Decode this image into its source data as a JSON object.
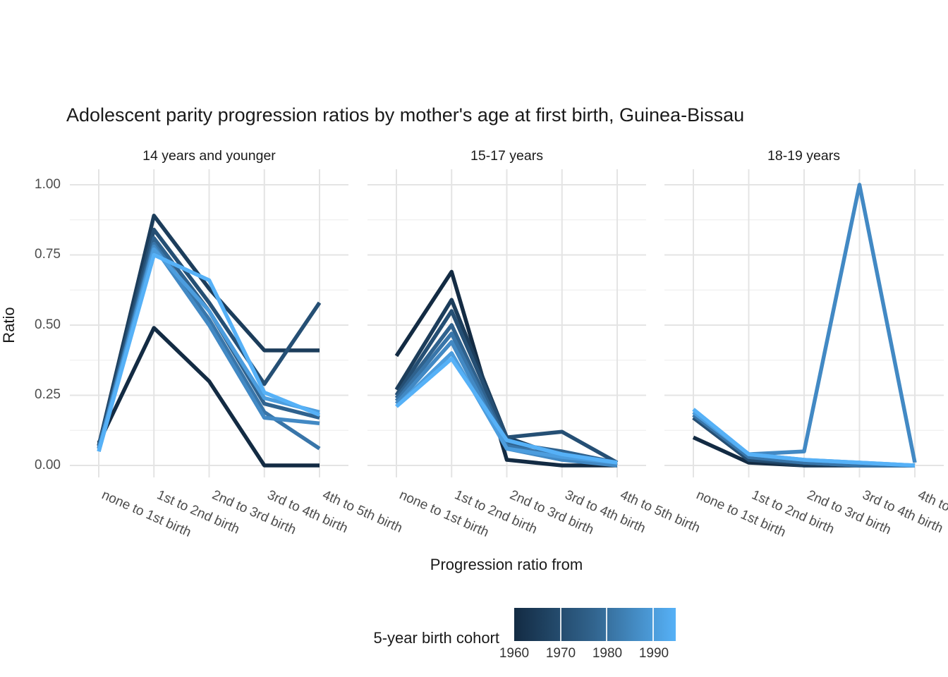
{
  "title": "Adolescent parity progression ratios by mother's age at first birth,  Guinea-Bissau",
  "y_axis": {
    "title": "Ratio",
    "ticks": [
      "1.00",
      "0.75",
      "0.50",
      "0.25",
      "0.00"
    ]
  },
  "x_axis": {
    "title": "Progression ratio from"
  },
  "legend": {
    "title": "5-year birth cohort",
    "tick_labels": [
      "1960",
      "1970",
      "1980",
      "1990"
    ],
    "gradient_low": "#132B43",
    "gradient_mid": "#32658F",
    "gradient_high": "#56B1F7"
  },
  "chart_data": {
    "type": "line",
    "title": "Adolescent parity progression ratios by mother's age at first birth,  Guinea-Bissau",
    "xlabel": "Progression ratio from",
    "ylabel": "Ratio",
    "ylim": [
      0,
      1
    ],
    "y_major_ticks": [
      0,
      0.25,
      0.5,
      0.75,
      1.0
    ],
    "y_minor_ticks": [
      0.125,
      0.375,
      0.625,
      0.875
    ],
    "grid": true,
    "legend_position": "bottom",
    "color_scale": {
      "title": "5-year birth cohort",
      "low": "#132B43",
      "high": "#56B1F7",
      "ticks": [
        1960,
        1970,
        1980,
        1990
      ]
    },
    "categories": [
      "none to 1st birth",
      "1st to 2nd birth",
      "2nd to 3rd birth",
      "3rd to 4th birth",
      "4th to 5th birth"
    ],
    "facets": [
      {
        "label": "14 years and younger",
        "series": [
          {
            "name": "1960",
            "color": "#132B43",
            "values": [
              0.08,
              0.49,
              0.3,
              0.0,
              0.0
            ]
          },
          {
            "name": "1965",
            "color": "#1C3D5B",
            "values": [
              0.07,
              0.89,
              0.63,
              0.41,
              0.41
            ]
          },
          {
            "name": "1970",
            "color": "#254F74",
            "values": [
              0.07,
              0.84,
              0.58,
              0.29,
              0.58
            ]
          },
          {
            "name": "1975",
            "color": "#2F628E",
            "values": [
              0.06,
              0.81,
              0.55,
              0.22,
              0.17
            ]
          },
          {
            "name": "1980",
            "color": "#3875A9",
            "values": [
              0.06,
              0.79,
              0.52,
              0.19,
              0.06
            ]
          },
          {
            "name": "1985",
            "color": "#4289C4",
            "values": [
              0.06,
              0.78,
              0.5,
              0.17,
              0.15
            ]
          },
          {
            "name": "1990",
            "color": "#4C9DDE",
            "values": [
              0.05,
              0.77,
              0.55,
              0.24,
              0.19
            ]
          },
          {
            "name": "1995",
            "color": "#56B1F7",
            "values": [
              0.05,
              0.75,
              0.66,
              0.26,
              0.18
            ]
          }
        ]
      },
      {
        "label": "15-17 years",
        "series": [
          {
            "name": "1960",
            "color": "#132B43",
            "values": [
              0.39,
              0.69,
              0.02,
              0.0,
              0.0
            ]
          },
          {
            "name": "1965",
            "color": "#1C3D5B",
            "values": [
              0.27,
              0.59,
              0.1,
              0.03,
              0.0
            ]
          },
          {
            "name": "1970",
            "color": "#254F74",
            "values": [
              0.25,
              0.55,
              0.1,
              0.12,
              0.01
            ]
          },
          {
            "name": "1975",
            "color": "#2F628E",
            "values": [
              0.24,
              0.5,
              0.08,
              0.05,
              0.01
            ]
          },
          {
            "name": "1980",
            "color": "#3875A9",
            "values": [
              0.23,
              0.47,
              0.07,
              0.03,
              0.01
            ]
          },
          {
            "name": "1985",
            "color": "#4289C4",
            "values": [
              0.22,
              0.44,
              0.06,
              0.02,
              0.0
            ]
          },
          {
            "name": "1990",
            "color": "#4C9DDE",
            "values": [
              0.21,
              0.4,
              0.06,
              0.03,
              0.01
            ]
          },
          {
            "name": "1995",
            "color": "#56B1F7",
            "values": [
              0.21,
              0.38,
              0.09,
              0.04,
              0.01
            ]
          }
        ]
      },
      {
        "label": "18-19 years",
        "series": [
          {
            "name": "1960",
            "color": "#132B43",
            "values": [
              0.1,
              0.01,
              0.0,
              0.0,
              0.0
            ]
          },
          {
            "name": "1965",
            "color": "#1C3D5B",
            "values": [
              0.17,
              0.02,
              0.0,
              0.0,
              0.0
            ]
          },
          {
            "name": "1970",
            "color": "#254F74",
            "values": [
              0.17,
              0.02,
              0.01,
              0.0,
              0.0
            ]
          },
          {
            "name": "1975",
            "color": "#2F628E",
            "values": [
              0.18,
              0.03,
              0.01,
              0.0,
              0.0
            ]
          },
          {
            "name": "1980",
            "color": "#3875A9",
            "values": [
              0.18,
              0.03,
              0.01,
              0.0,
              0.0
            ]
          },
          {
            "name": "1985",
            "color": "#4289C4",
            "values": [
              0.19,
              0.04,
              0.05,
              1.0,
              0.01
            ]
          },
          {
            "name": "1990",
            "color": "#4C9DDE",
            "values": [
              0.19,
              0.04,
              0.02,
              0.01,
              0.0
            ]
          },
          {
            "name": "1995",
            "color": "#56B1F7",
            "values": [
              0.2,
              0.04,
              0.02,
              0.01,
              0.0
            ]
          }
        ]
      }
    ]
  }
}
